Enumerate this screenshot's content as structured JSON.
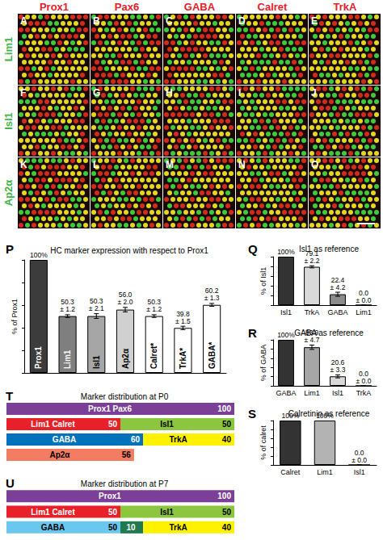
{
  "micrographs": {
    "columns": [
      "Prox1",
      "Pax6",
      "GABA",
      "Calret",
      "TrkA"
    ],
    "column_color": "#e8202a",
    "rows": [
      "Lim1",
      "Isl1",
      "Ap2α"
    ],
    "row_color": "#3fb54a",
    "panels": [
      [
        "A",
        "B",
        "C",
        "D",
        "E"
      ],
      [
        "F",
        "G",
        "H",
        "I",
        "J"
      ],
      [
        "K",
        "L",
        "M",
        "N",
        "O"
      ]
    ]
  },
  "chart_data": [
    {
      "type": "bar",
      "panel_label": "P",
      "title": "HC marker expression with respect to Prox1",
      "y_label": "% of Prox1",
      "categories": [
        "Prox1",
        "Lim1",
        "Isl1",
        "Ap2α",
        "Calret*",
        "TrkA*",
        "GABA*"
      ],
      "values": [
        100,
        50.3,
        50.3,
        56.0,
        50.3,
        39.8,
        60.2
      ],
      "errors": [
        null,
        1.2,
        2.1,
        2.0,
        1.2,
        1.5,
        1.3
      ],
      "value_labels": [
        "100%",
        "50.3\n± 1.2",
        "50.3\n± 2.1",
        "56.0\n± 2.0",
        "50.3\n± 1.2",
        "39.8\n± 1.5",
        "60.2\n± 1.3"
      ],
      "colors": [
        "#3c3c3c",
        "#7f7f7f",
        "#a6a6a6",
        "#d0d0d0",
        "#ffffff",
        "#ffffff",
        "#ffffff"
      ],
      "ylim": [
        0,
        100
      ],
      "yticks": [
        0,
        20,
        40,
        60,
        80,
        100
      ],
      "data_labels": true,
      "tick_labels": false,
      "grid": false
    },
    {
      "type": "bar",
      "panel_label": "Q",
      "title": "Isl1 as reference",
      "y_label": "% of Isl1",
      "categories": [
        "Isl1",
        "TrkA",
        "GABA",
        "Lim1"
      ],
      "values": [
        100,
        79.1,
        22.4,
        0.0
      ],
      "errors": [
        null,
        2.2,
        4.2,
        0.0
      ],
      "value_labels": [
        "100%",
        "79.1\n± 2.2",
        "22.4\n± 4.2",
        "0.0\n± 0.0"
      ],
      "colors": [
        "#333333",
        "#d9d9d9",
        "#8c8c8c",
        "#8c8c8c"
      ],
      "ylim": [
        0,
        100
      ],
      "yticks": [
        0,
        20,
        40,
        60,
        80,
        100
      ],
      "data_labels": true,
      "tick_labels": "x",
      "grid": false
    },
    {
      "type": "bar",
      "panel_label": "R",
      "title": "GABA as reference",
      "y_label": "% of GABA",
      "categories": [
        "GABA",
        "Lim1",
        "Isl1",
        "TrkA"
      ],
      "values": [
        100,
        83.9,
        20.6,
        0.0
      ],
      "errors": [
        null,
        4.7,
        3.3,
        0.0
      ],
      "value_labels": [
        "100%",
        "83.9\n± 4.7",
        "20.6\n± 3.3",
        "0.0\n± 0.0"
      ],
      "colors": [
        "#333333",
        "#a6a6a6",
        "#d9d9d9",
        "#d9d9d9"
      ],
      "ylim": [
        0,
        100
      ],
      "yticks": [
        0,
        20,
        40,
        60,
        80,
        100
      ],
      "data_labels": true,
      "tick_labels": "x",
      "grid": false
    },
    {
      "type": "bar",
      "panel_label": "S",
      "title": "Calretinin as reference",
      "y_label": "% of calret",
      "categories": [
        "Calret",
        "Lim1",
        "Isl1"
      ],
      "values": [
        100,
        100,
        0.0
      ],
      "errors": [
        null,
        null,
        0.0
      ],
      "value_labels": [
        "100%",
        "100%",
        "0.0\n± 0.0"
      ],
      "colors": [
        "#333333",
        "#b3b3b3",
        "#d9d9d9"
      ],
      "ylim": [
        0,
        100
      ],
      "yticks": [
        0,
        20,
        40,
        60,
        80,
        100
      ],
      "data_labels": true,
      "tick_labels": "x",
      "grid": false
    },
    {
      "type": "bar",
      "panel_label": "T",
      "title": "Marker distribution at P0",
      "orientation": "horizontal",
      "stacked": true,
      "data_labels": true,
      "tick_labels": false,
      "xlim": [
        0,
        100
      ],
      "rows": [
        [
          {
            "label": "Prox1 Pax6",
            "value": 100,
            "color": "#7b3f98"
          }
        ],
        [
          {
            "label": "Lim1 Calret",
            "value": 50,
            "color": "#e8202a"
          },
          {
            "label": "Isl1",
            "value": 50,
            "color": "#8cc63f"
          }
        ],
        [
          {
            "label": "GABA",
            "value": 60,
            "color": "#0072bc"
          },
          {
            "label": "TrkA",
            "value": 40,
            "color": "#fff200"
          }
        ],
        [
          {
            "label": "Ap2α",
            "value": 56,
            "color": "#f47c62"
          }
        ]
      ]
    },
    {
      "type": "bar",
      "panel_label": "U",
      "title": "Marker distribution at P7",
      "orientation": "horizontal",
      "stacked": true,
      "data_labels": true,
      "tick_labels": false,
      "xlim": [
        0,
        100
      ],
      "rows": [
        [
          {
            "label": "Prox1",
            "value": 100,
            "color": "#7b3f98"
          }
        ],
        [
          {
            "label": "Lim1 Calret",
            "value": 50,
            "color": "#e8202a"
          },
          {
            "label": "Isl1",
            "value": 50,
            "color": "#8cc63f"
          }
        ],
        [
          {
            "label": "GABA",
            "value": 50,
            "color": "#6ac7ef"
          },
          {
            "label": null,
            "value": 10,
            "color": "#1f7a4d"
          },
          {
            "label": "TrkA",
            "value": 40,
            "color": "#fff200"
          }
        ]
      ]
    }
  ]
}
